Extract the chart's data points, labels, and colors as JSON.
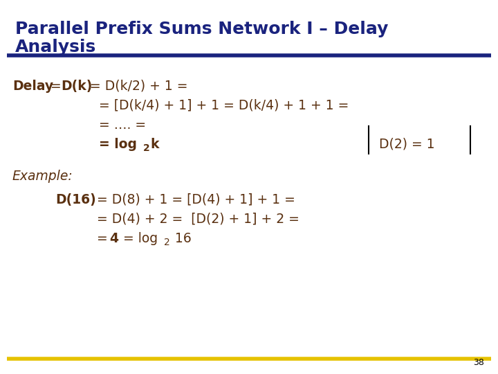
{
  "title_line1": "Parallel Prefix Sums Network I – Delay",
  "title_line2": "Analysis",
  "title_color": "#1a237e",
  "title_fontsize": 18,
  "bg_color": "#ffffff",
  "divider_color": "#1a237e",
  "gold_bar_color": "#e6c200",
  "page_number": "38",
  "body_color": "#5a3010",
  "body_fontsize": 13.5,
  "sub_fontsize": 10
}
